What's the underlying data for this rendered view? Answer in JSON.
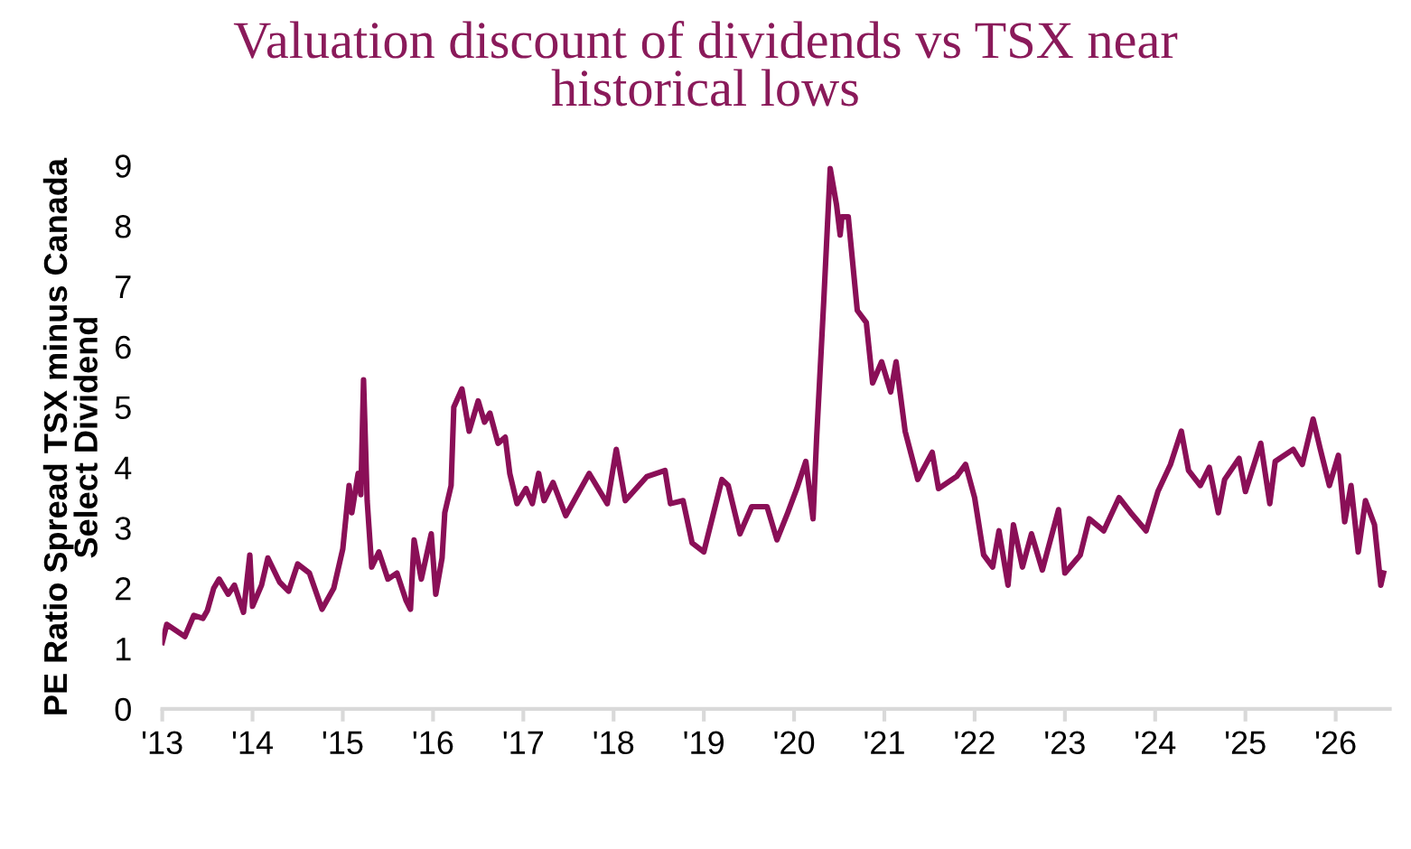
{
  "chart_data": {
    "type": "line",
    "title": "Valuation discount of dividends vs TSX near\nhistorical lows",
    "ylabel": "PE Ratio Spread TSX minus Canada\nSelect Dividend",
    "x": [
      2013.0,
      2013.05,
      2013.15,
      2013.25,
      2013.35,
      2013.45,
      2013.5,
      2013.57,
      2013.63,
      2013.73,
      2013.8,
      2013.9,
      2013.97,
      2014.0,
      2014.1,
      2014.17,
      2014.3,
      2014.4,
      2014.5,
      2014.63,
      2014.77,
      2014.9,
      2015.0,
      2015.07,
      2015.1,
      2015.17,
      2015.2,
      2015.23,
      2015.27,
      2015.32,
      2015.4,
      2015.5,
      2015.6,
      2015.7,
      2015.75,
      2015.79,
      2015.87,
      2015.98,
      2016.03,
      2016.1,
      2016.13,
      2016.2,
      2016.23,
      2016.32,
      2016.4,
      2016.5,
      2016.57,
      2016.63,
      2016.72,
      2016.8,
      2016.85,
      2016.93,
      2017.03,
      2017.1,
      2017.17,
      2017.23,
      2017.33,
      2017.47,
      2017.73,
      2017.93,
      2018.03,
      2018.13,
      2018.37,
      2018.57,
      2018.63,
      2018.77,
      2018.87,
      2019.0,
      2019.2,
      2019.27,
      2019.4,
      2019.53,
      2019.7,
      2019.81,
      2019.93,
      2020.03,
      2020.13,
      2020.21,
      2020.25,
      2020.33,
      2020.4,
      2020.47,
      2020.51,
      2020.53,
      2020.6,
      2020.7,
      2020.8,
      2020.87,
      2020.97,
      2021.07,
      2021.13,
      2021.23,
      2021.37,
      2021.53,
      2021.6,
      2021.8,
      2021.9,
      2022.0,
      2022.1,
      2022.2,
      2022.27,
      2022.37,
      2022.43,
      2022.53,
      2022.63,
      2022.75,
      2022.93,
      2023.0,
      2023.17,
      2023.27,
      2023.43,
      2023.6,
      2023.73,
      2023.9,
      2024.03,
      2024.17,
      2024.29,
      2024.37,
      2024.5,
      2024.6,
      2024.7,
      2024.77,
      2024.93,
      2025.0,
      2025.17,
      2025.27,
      2025.33,
      2025.53,
      2025.63,
      2025.75,
      2025.83,
      2025.93,
      2026.03,
      2026.1,
      2026.17,
      2026.25,
      2026.33,
      2026.43,
      2026.5,
      2026.53
    ],
    "series": [
      {
        "color": "#8a0f57",
        "values": [
          1.1,
          1.4,
          1.3,
          1.2,
          1.55,
          1.5,
          1.63,
          2.0,
          2.15,
          1.9,
          2.05,
          1.6,
          2.55,
          1.7,
          2.05,
          2.5,
          2.1,
          1.95,
          2.4,
          2.25,
          1.65,
          2.0,
          2.65,
          3.7,
          3.25,
          3.9,
          3.55,
          5.45,
          3.45,
          2.35,
          2.6,
          2.15,
          2.25,
          1.8,
          1.65,
          2.8,
          2.15,
          2.9,
          1.9,
          2.5,
          3.25,
          3.7,
          5.0,
          5.3,
          4.6,
          5.1,
          4.75,
          4.9,
          4.4,
          4.5,
          3.9,
          3.4,
          3.65,
          3.4,
          3.9,
          3.45,
          3.75,
          3.2,
          3.9,
          3.4,
          4.3,
          3.45,
          3.85,
          3.95,
          3.4,
          3.45,
          2.75,
          2.6,
          3.8,
          3.7,
          2.9,
          3.35,
          3.35,
          2.8,
          3.25,
          3.65,
          4.1,
          3.15,
          4.5,
          6.8,
          8.95,
          8.35,
          7.85,
          8.15,
          8.15,
          6.6,
          6.4,
          5.4,
          5.75,
          5.25,
          5.75,
          4.6,
          3.8,
          4.25,
          3.65,
          3.85,
          4.05,
          3.5,
          2.55,
          2.35,
          2.95,
          2.05,
          3.05,
          2.35,
          2.9,
          2.3,
          3.3,
          2.25,
          2.55,
          3.15,
          2.95,
          3.5,
          3.25,
          2.95,
          3.6,
          4.05,
          4.6,
          3.95,
          3.7,
          4.0,
          3.25,
          3.8,
          4.15,
          3.6,
          4.4,
          3.4,
          4.1,
          4.3,
          4.05,
          4.8,
          4.3,
          3.7,
          4.2,
          3.1,
          3.7,
          2.6,
          3.45,
          3.05,
          2.05,
          2.25
        ]
      }
    ],
    "xlim": [
      2013,
      2026.6
    ],
    "xticks": [
      {
        "value": 2013,
        "label": "'13"
      },
      {
        "value": 2014,
        "label": "'14"
      },
      {
        "value": 2015,
        "label": "'15"
      },
      {
        "value": 2016,
        "label": "'16"
      },
      {
        "value": 2017,
        "label": "'17"
      },
      {
        "value": 2018,
        "label": "'18"
      },
      {
        "value": 2019,
        "label": "'19"
      },
      {
        "value": 2020,
        "label": "'20"
      },
      {
        "value": 2021,
        "label": "'21"
      },
      {
        "value": 2022,
        "label": "'22"
      },
      {
        "value": 2023,
        "label": "'23"
      },
      {
        "value": 2024,
        "label": "'24"
      },
      {
        "value": 2025,
        "label": "'25"
      },
      {
        "value": 2026,
        "label": "'26"
      }
    ],
    "ylim": [
      0,
      9
    ],
    "yticks": [
      0,
      1,
      2,
      3,
      4,
      5,
      6,
      7,
      8,
      9
    ],
    "grid": false,
    "legend": false,
    "line_style": "solid",
    "marker": "none"
  }
}
